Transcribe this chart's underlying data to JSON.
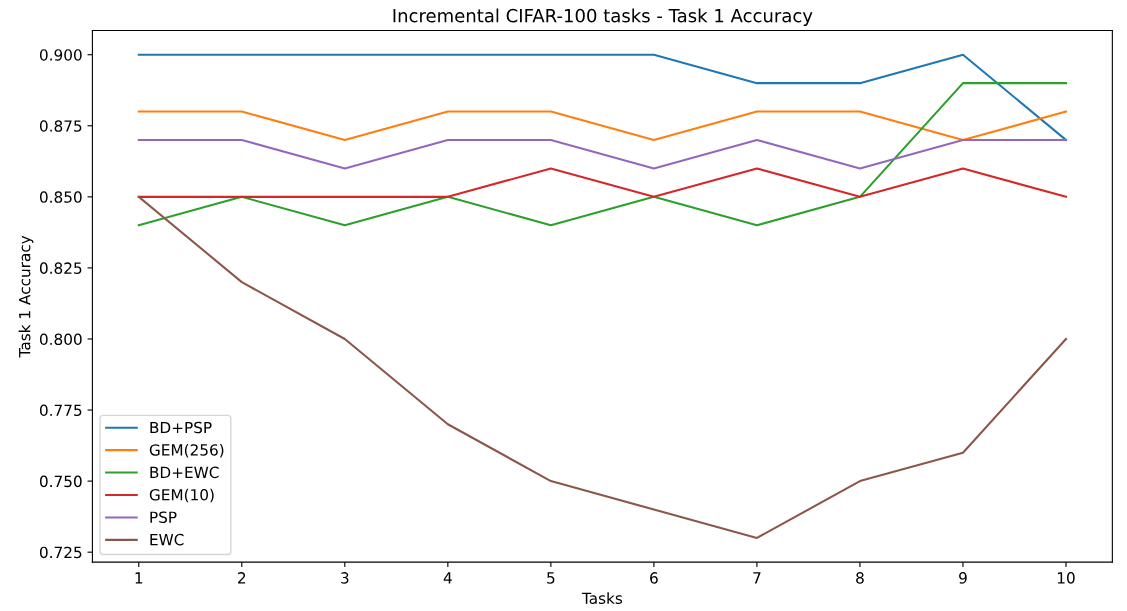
{
  "chart_data": {
    "type": "line",
    "title": "Incremental CIFAR-100 tasks - Task 1 Accuracy",
    "xlabel": "Tasks",
    "ylabel": "Task 1 Accuracy",
    "x": [
      1,
      2,
      3,
      4,
      5,
      6,
      7,
      8,
      9,
      10
    ],
    "series": [
      {
        "name": "BD+PSP",
        "color": "#1f77b4",
        "values": [
          0.9,
          0.9,
          0.9,
          0.9,
          0.9,
          0.9,
          0.89,
          0.89,
          0.9,
          0.87
        ]
      },
      {
        "name": "GEM(256)",
        "color": "#ff7f0e",
        "values": [
          0.88,
          0.88,
          0.87,
          0.88,
          0.88,
          0.87,
          0.88,
          0.88,
          0.87,
          0.88
        ]
      },
      {
        "name": "BD+EWC",
        "color": "#2ca02c",
        "values": [
          0.84,
          0.85,
          0.84,
          0.85,
          0.84,
          0.85,
          0.84,
          0.85,
          0.89,
          0.89
        ]
      },
      {
        "name": "GEM(10)",
        "color": "#d62728",
        "values": [
          0.85,
          0.85,
          0.85,
          0.85,
          0.86,
          0.85,
          0.86,
          0.85,
          0.86,
          0.85
        ]
      },
      {
        "name": "PSP",
        "color": "#9467bd",
        "values": [
          0.87,
          0.87,
          0.86,
          0.87,
          0.87,
          0.86,
          0.87,
          0.86,
          0.87,
          0.87
        ]
      },
      {
        "name": "EWC",
        "color": "#8c564b",
        "values": [
          0.85,
          0.82,
          0.8,
          0.77,
          0.75,
          0.74,
          0.73,
          0.75,
          0.76,
          0.8
        ]
      }
    ],
    "xlim": [
      0.55,
      10.45
    ],
    "xticks": [
      1,
      2,
      3,
      4,
      5,
      6,
      7,
      8,
      9,
      10
    ],
    "ylim": [
      0.7215,
      0.9085
    ],
    "yticks": [
      {
        "value": 0.725,
        "label": "0.725"
      },
      {
        "value": 0.75,
        "label": "0.750"
      },
      {
        "value": 0.775,
        "label": "0.775"
      },
      {
        "value": 0.8,
        "label": "0.800"
      },
      {
        "value": 0.825,
        "label": "0.825"
      },
      {
        "value": 0.85,
        "label": "0.850"
      },
      {
        "value": 0.875,
        "label": "0.875"
      },
      {
        "value": 0.9,
        "label": "0.900"
      }
    ],
    "legend": "lower left",
    "grid": false,
    "marker": "none",
    "line_style": "solid"
  }
}
